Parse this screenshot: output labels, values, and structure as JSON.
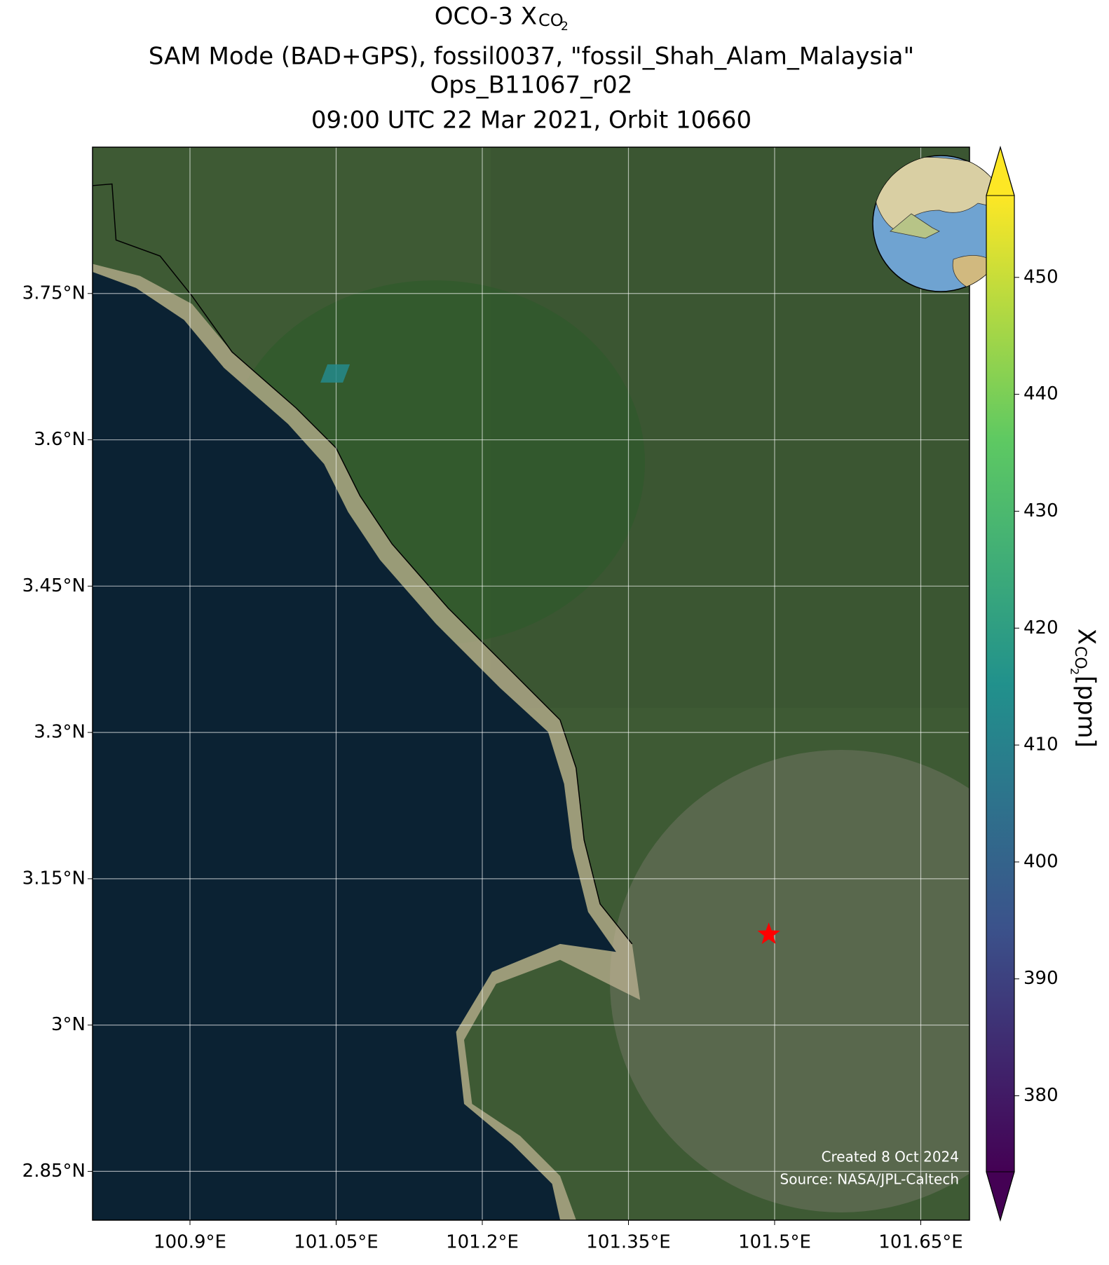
{
  "chart_data": {
    "type": "map",
    "title": {
      "main": "OCO-3 X",
      "sub": "CO",
      "subsub": "2"
    },
    "subtitle_lines": [
      "SAM Mode (BAD+GPS), fossil0037, \"fossil_Shah_Alam_Malaysia\"",
      "Ops_B11067_r02",
      "09:00 UTC 22 Mar 2021, Orbit 10660"
    ],
    "xlim": [
      100.8,
      101.7
    ],
    "ylim": [
      2.8,
      3.9
    ],
    "xticks": [
      {
        "value": 100.9,
        "label": "100.9°E"
      },
      {
        "value": 101.05,
        "label": "101.05°E"
      },
      {
        "value": 101.2,
        "label": "101.2°E"
      },
      {
        "value": 101.35,
        "label": "101.35°E"
      },
      {
        "value": 101.5,
        "label": "101.5°E"
      },
      {
        "value": 101.65,
        "label": "101.65°E"
      }
    ],
    "yticks": [
      {
        "value": 2.85,
        "label": "2.85°N"
      },
      {
        "value": 3.0,
        "label": "3°N"
      },
      {
        "value": 3.15,
        "label": "3.15°N"
      },
      {
        "value": 3.3,
        "label": "3.3°N"
      },
      {
        "value": 3.45,
        "label": "3.45°N"
      },
      {
        "value": 3.6,
        "label": "3.6°N"
      },
      {
        "value": 3.75,
        "label": "3.75°N"
      }
    ],
    "grid": true,
    "colormap": "viridis",
    "clim": [
      373.5,
      457
    ],
    "cticks": [
      380,
      390,
      400,
      410,
      420,
      430,
      440,
      450
    ],
    "colorbar_label": {
      "main": "X",
      "sub": "CO",
      "subsub": "2",
      "unit": " [ppm]"
    },
    "footprints": [
      {
        "lon": 101.049,
        "lat": 3.668,
        "xco2": 413
      }
    ],
    "target": {
      "lon": 101.494,
      "lat": 3.093,
      "color": "#ff0000"
    },
    "annotations": [
      "Created 8 Oct 2024",
      "Source: NASA/JPL-Caltech"
    ]
  }
}
